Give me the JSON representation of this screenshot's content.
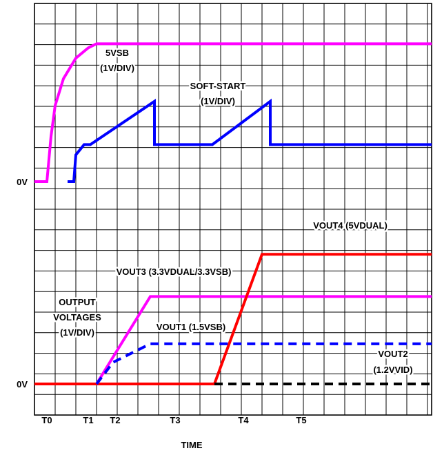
{
  "chart_data": {
    "type": "line",
    "title": "",
    "xlabel": "TIME",
    "ylabel": "",
    "grid": true,
    "x_ticks": [
      "T0",
      "T1",
      "T2",
      "T3",
      "T4",
      "T5"
    ],
    "x_tick_positions": [
      0,
      2,
      3.3,
      6.2,
      9.5,
      12.3
    ],
    "xlim": [
      0,
      19.2
    ],
    "y_zero_labels": [
      "0V",
      "0V"
    ],
    "upper_panel": {
      "group_label": "",
      "series": [
        {
          "name": "5VSB",
          "unit_label": "(1V/DIV)",
          "color": "#ff00ff",
          "style": "solid",
          "points": [
            [
              0,
              0
            ],
            [
              0.6,
              0
            ],
            [
              0.8,
              2.2
            ],
            [
              1.0,
              3.7
            ],
            [
              1.4,
              5.0
            ],
            [
              2.0,
              6.0
            ],
            [
              2.6,
              6.5
            ],
            [
              3.0,
              6.7
            ],
            [
              19.2,
              6.7
            ]
          ]
        },
        {
          "name": "SOFT-START",
          "unit_label": "(1V/DIV)",
          "color": "#0000ff",
          "style": "solid",
          "points": [
            [
              1.6,
              0
            ],
            [
              1.9,
              0
            ],
            [
              2.0,
              1.3
            ],
            [
              2.4,
              1.8
            ],
            [
              2.7,
              1.8
            ],
            [
              5.8,
              3.9
            ],
            [
              5.8,
              1.8
            ],
            [
              8.6,
              1.8
            ],
            [
              11.4,
              3.9
            ],
            [
              11.4,
              1.8
            ],
            [
              19.2,
              1.8
            ]
          ]
        }
      ]
    },
    "lower_panel": {
      "group_label": [
        "OUTPUT",
        "VOLTAGES",
        "(1V/DIV)"
      ],
      "series": [
        {
          "name": "VOUT3 (3.3VDUAL/3.3VSB)",
          "color": "#ff00ff",
          "style": "solid",
          "points": [
            [
              0,
              0
            ],
            [
              3.0,
              0
            ],
            [
              5.6,
              4.25
            ],
            [
              19.2,
              4.25
            ]
          ]
        },
        {
          "name": "VOUT1 (1.5VSB)",
          "color": "#0000ff",
          "style": "dashed",
          "points": [
            [
              3.0,
              0
            ],
            [
              3.8,
              1.05
            ],
            [
              5.6,
              1.95
            ],
            [
              19.2,
              1.95
            ]
          ]
        },
        {
          "name": "VOUT4 (5VDUAL)",
          "color": "#ff0000",
          "style": "solid",
          "points": [
            [
              0,
              0
            ],
            [
              8.7,
              0
            ],
            [
              11.0,
              6.3
            ],
            [
              19.2,
              6.3
            ]
          ]
        },
        {
          "name": "VOUT2",
          "name_line2": "(1.2VVID)",
          "color": "#000000",
          "style": "dashed",
          "points": [
            [
              8.7,
              0
            ],
            [
              19.2,
              0
            ]
          ]
        }
      ]
    }
  }
}
